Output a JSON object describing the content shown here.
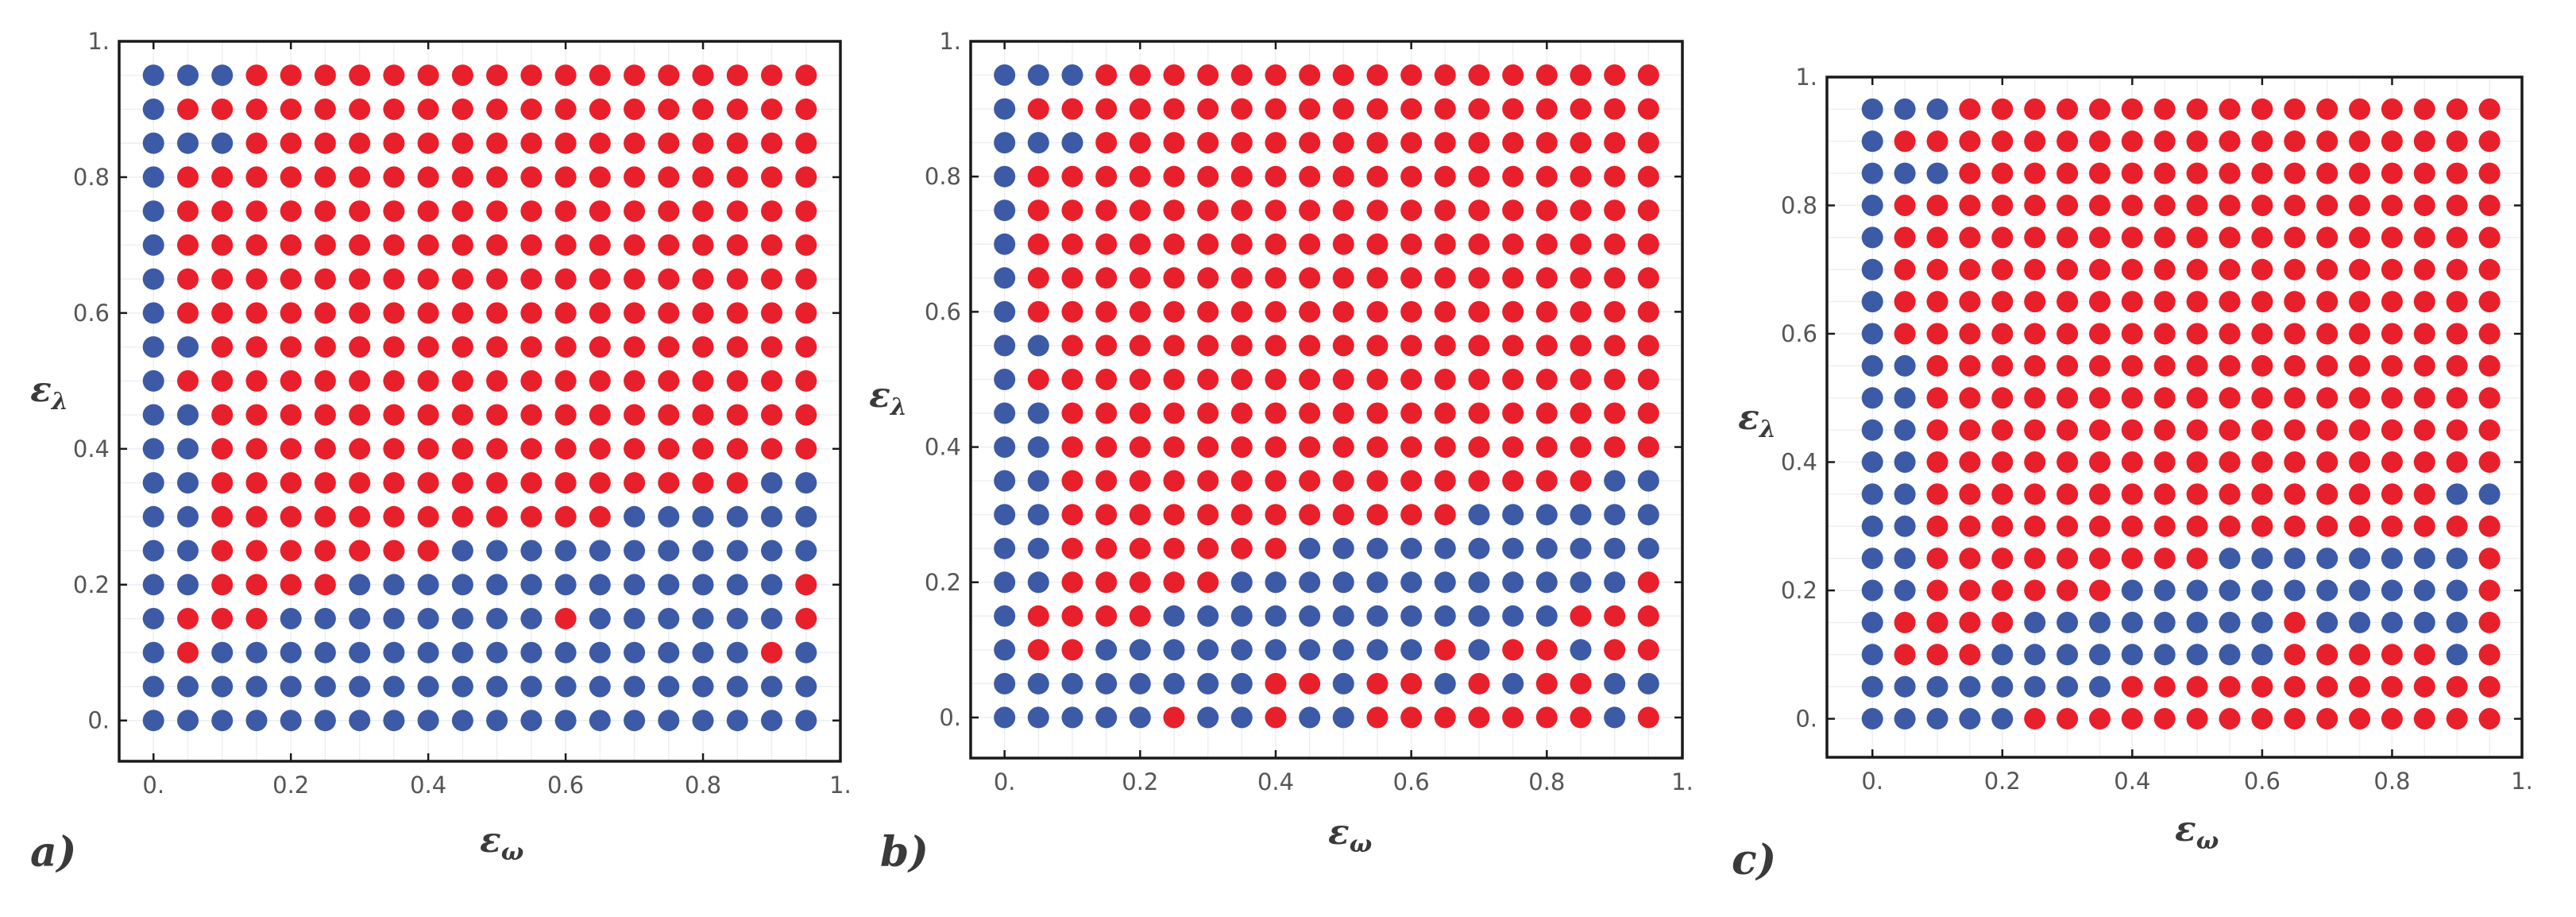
{
  "colors": {
    "blue": "#3c5aa6",
    "red": "#e8202b"
  },
  "axis": {
    "x_label": "ε",
    "x_sub": "ω",
    "y_label": "ε",
    "y_sub": "λ",
    "x_ticks": [
      "0.",
      "0.2",
      "0.4",
      "0.6",
      "0.8",
      "1."
    ],
    "y_ticks": [
      "0.",
      "0.2",
      "0.4",
      "0.6",
      "0.8",
      "1."
    ]
  },
  "chart_data": [
    {
      "type": "scatter",
      "panel_label": "a)",
      "xlim": [
        -0.05,
        1.0
      ],
      "ylim": [
        -0.06,
        1.0
      ],
      "grid": true,
      "x": [
        0,
        0.05,
        0.1,
        0.15,
        0.2,
        0.25,
        0.3,
        0.35,
        0.4,
        0.45,
        0.5,
        0.55,
        0.6,
        0.65,
        0.7,
        0.75,
        0.8,
        0.85,
        0.9,
        0.95
      ],
      "y": [
        0,
        0.05,
        0.1,
        0.15,
        0.2,
        0.25,
        0.3,
        0.35,
        0.4,
        0.45,
        0.5,
        0.55,
        0.6,
        0.65,
        0.7,
        0.75,
        0.8,
        0.85,
        0.9,
        0.95
      ],
      "color_legend": "B = blue point, R = red point; row strings listed from y = 0.95 down to y = 0, columns from x = 0 to x = 0.95",
      "rows": [
        "BBBRRRRRRRRRRRRRRRRR",
        "BRRRRRRRRRRRRRRRRRRR",
        "BBBRRRRRRRRRRRRRRRRR",
        "BRRRRRRRRRRRRRRRRRRR",
        "BRRRRRRRRRRRRRRRRRRR",
        "BRRRRRRRRRRRRRRRRRRR",
        "BRRRRRRRRRRRRRRRRRRR",
        "BRRRRRRRRRRRRRRRRRRR",
        "BBRRRRRRRRRRRRRRRRRR",
        "BRRRRRRRRRRRRRRRRRRR",
        "BBRRRRRRRRRRRRRRRRRR",
        "BBRRRRRRRRRRRRRRRRRR",
        "BBRRRRRRRRRRRRRRRRBB",
        "BBRRRRRRRRRRRRBBBBBB",
        "BBRRRRRRRBBBBBBBBBBB",
        "BBRRRRBBBBBBBBBBBBBR",
        "BRRRBBBBBBBBRBBBBBBR",
        "BRBBBBBBBBBBBBBBBBRB",
        "BBBBBBBBBBBBBBBBBBBB",
        "BBBBBBBBBBBBBBBBBBBB"
      ]
    },
    {
      "type": "scatter",
      "panel_label": "b)",
      "xlim": [
        -0.05,
        1.0
      ],
      "ylim": [
        -0.06,
        1.0
      ],
      "grid": true,
      "x": [
        0,
        0.05,
        0.1,
        0.15,
        0.2,
        0.25,
        0.3,
        0.35,
        0.4,
        0.45,
        0.5,
        0.55,
        0.6,
        0.65,
        0.7,
        0.75,
        0.8,
        0.85,
        0.9,
        0.95
      ],
      "y": [
        0,
        0.05,
        0.1,
        0.15,
        0.2,
        0.25,
        0.3,
        0.35,
        0.4,
        0.45,
        0.5,
        0.55,
        0.6,
        0.65,
        0.7,
        0.75,
        0.8,
        0.85,
        0.9,
        0.95
      ],
      "color_legend": "B = blue point, R = red point; row strings listed from y = 0.95 down to y = 0, columns from x = 0 to x = 0.95",
      "rows": [
        "BBBRRRRRRRRRRRRRRRRR",
        "BRRRRRRRRRRRRRRRRRRR",
        "BBBRRRRRRRRRRRRRRRRR",
        "BRRRRRRRRRRRRRRRRRRR",
        "BRRRRRRRRRRRRRRRRRRR",
        "BRRRRRRRRRRRRRRRRRRR",
        "BRRRRRRRRRRRRRRRRRRR",
        "BRRRRRRRRRRRRRRRRRRR",
        "BBRRRRRRRRRRRRRRRRRR",
        "BRRRRRRRRRRRRRRRRRRR",
        "BBRRRRRRRRRRRRRRRRRR",
        "BBRRRRRRRRRRRRRRRRRR",
        "BBRRRRRRRRRRRRRRRRBB",
        "BBRRRRRRRRRRRRBBBBBB",
        "BBRRRRRRRBBBBBBBBBBB",
        "BBRRRRRBBBBBBBBBBBBR",
        "BRRRRBBBBBBBBBBBBRRR",
        "BRRBBBBBBBBBBRBRRBRR",
        "BBBBBBBBRRBRRBRBRRBB",
        "BBBBBRBBRBBRRRRRRRBR"
      ]
    },
    {
      "type": "scatter",
      "panel_label": "c)",
      "xlim": [
        -0.07,
        1.0
      ],
      "ylim": [
        -0.06,
        1.0
      ],
      "grid": true,
      "x": [
        0,
        0.05,
        0.1,
        0.15,
        0.2,
        0.25,
        0.3,
        0.35,
        0.4,
        0.45,
        0.5,
        0.55,
        0.6,
        0.65,
        0.7,
        0.75,
        0.8,
        0.85,
        0.9,
        0.95
      ],
      "y": [
        0,
        0.05,
        0.1,
        0.15,
        0.2,
        0.25,
        0.3,
        0.35,
        0.4,
        0.45,
        0.5,
        0.55,
        0.6,
        0.65,
        0.7,
        0.75,
        0.8,
        0.85,
        0.9,
        0.95
      ],
      "color_legend": "B = blue point, R = red point; row strings listed from y = 0.95 down to y = 0, columns from x = 0 to x = 0.95",
      "rows": [
        "BBBRRRRRRRRRRRRRRRRR",
        "BRRRRRRRRRRRRRRRRRRR",
        "BBBRRRRRRRRRRRRRRRRR",
        "BRRRRRRRRRRRRRRRRRRR",
        "BRRRRRRRRRRRRRRRRRRR",
        "BRRRRRRRRRRRRRRRRRRR",
        "BRRRRRRRRRRRRRRRRRRR",
        "BRRRRRRRRRRRRRRRRRRR",
        "BBRRRRRRRRRRRRRRRRRR",
        "BBRRRRRRRRRRRRRRRRRR",
        "BBRRRRRRRRRRRRRRRRRR",
        "BBRRRRRRRRRRRRRRRRRR",
        "BBRRRRRRRRRRRRRRRRBB",
        "BBRRRRRRRRRRRRRRRRRR",
        "BBRRRRRRRRRBBBBBBBBR",
        "BBRRRRRRBBBBBBBBBBBR",
        "BRRRRBBBBBBBBRBBBBBR",
        "BRRRBBBBBBBBBRRRRRBR",
        "BBBBBBBBRRRRRRRRRRRR",
        "BBBBBRRRRRRRRRRRRRRR"
      ]
    }
  ]
}
